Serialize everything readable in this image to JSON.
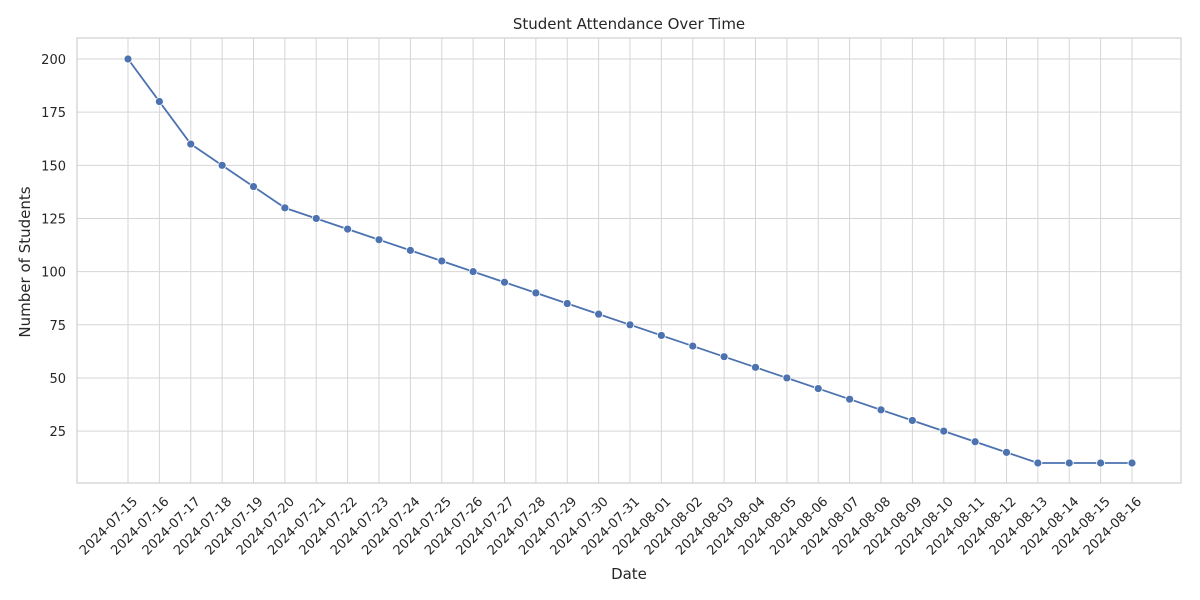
{
  "chart_data": {
    "type": "line",
    "title": "Student Attendance Over Time",
    "xlabel": "Date",
    "ylabel": "Number of Students",
    "x": [
      "2024-07-15",
      "2024-07-16",
      "2024-07-17",
      "2024-07-18",
      "2024-07-19",
      "2024-07-20",
      "2024-07-21",
      "2024-07-22",
      "2024-07-23",
      "2024-07-24",
      "2024-07-25",
      "2024-07-26",
      "2024-07-27",
      "2024-07-28",
      "2024-07-29",
      "2024-07-30",
      "2024-07-31",
      "2024-08-01",
      "2024-08-02",
      "2024-08-03",
      "2024-08-04",
      "2024-08-05",
      "2024-08-06",
      "2024-08-07",
      "2024-08-08",
      "2024-08-09",
      "2024-08-10",
      "2024-08-11",
      "2024-08-12",
      "2024-08-13",
      "2024-08-14",
      "2024-08-15",
      "2024-08-16"
    ],
    "series": [
      {
        "values": [
          200,
          180,
          160,
          150,
          140,
          130,
          125,
          120,
          115,
          110,
          105,
          100,
          95,
          90,
          85,
          80,
          75,
          70,
          65,
          60,
          55,
          50,
          45,
          40,
          35,
          30,
          25,
          20,
          15,
          10,
          10,
          10,
          10
        ]
      }
    ],
    "yticks": [
      25,
      50,
      75,
      100,
      125,
      150,
      175,
      200
    ],
    "ylim": [
      0,
      210
    ],
    "grid": true,
    "line_color": "#4c72b0",
    "marker": "circle"
  }
}
